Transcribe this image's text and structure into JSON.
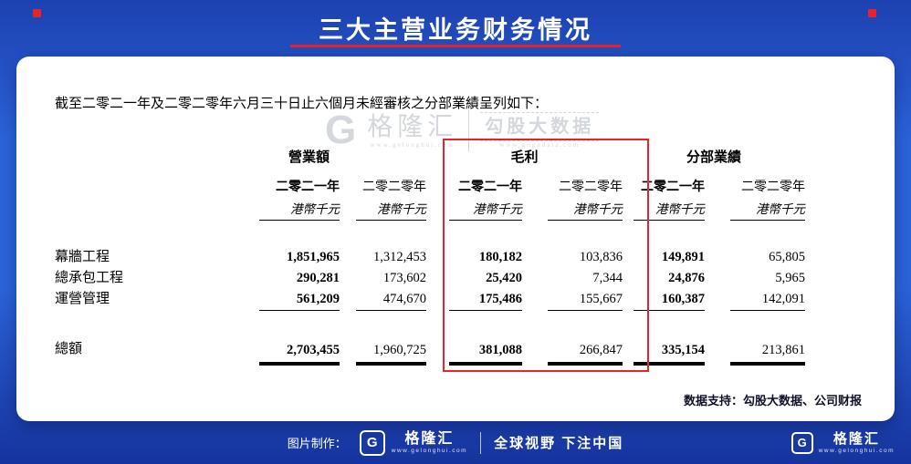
{
  "header": {
    "title": "三大主营业务财务情况"
  },
  "card": {
    "intro": "截至二零二一年及二零二零年六月三十日止六個月未經審核之分部業績呈列如下：",
    "data_support": "数据支持：勾股大数据、公司财报"
  },
  "watermark": {
    "logo_letter": "G",
    "brand": "格隆汇",
    "brand_url": "www.gelonghui.com",
    "partner": "勾股大数据",
    "partner_url": "www.gogudata.com"
  },
  "table": {
    "group_headers": [
      {
        "label": "營業額"
      },
      {
        "label": "毛利"
      },
      {
        "label": "分部業績"
      }
    ],
    "col_headers": [
      {
        "year": "二零二一年",
        "unit": "港幣千元"
      },
      {
        "year": "二零二零年",
        "unit": "港幣千元"
      },
      {
        "year": "二零二一年",
        "unit": "港幣千元"
      },
      {
        "year": "二零二零年",
        "unit": "港幣千元"
      },
      {
        "year": "二零二一年",
        "unit": "港幣千元"
      },
      {
        "year": "二零二零年",
        "unit": "港幣千元"
      }
    ],
    "rows": [
      {
        "label": "幕牆工程",
        "values": [
          "1,851,965",
          "1,312,453",
          "180,182",
          "103,836",
          "149,891",
          "65,805"
        ]
      },
      {
        "label": "總承包工程",
        "values": [
          "290,281",
          "173,602",
          "25,420",
          "7,344",
          "24,876",
          "5,965"
        ]
      },
      {
        "label": "運營管理",
        "values": [
          "561,209",
          "474,670",
          "175,486",
          "155,667",
          "160,387",
          "142,091"
        ]
      }
    ],
    "total": {
      "label": "總額",
      "values": [
        "2,703,455",
        "1,960,725",
        "381,088",
        "266,847",
        "335,154",
        "213,861"
      ]
    }
  },
  "footer": {
    "made_by": "图片制作：",
    "logo_letter": "G",
    "brand": "格隆汇",
    "brand_url": "www.gelonghui.com",
    "slogan": "全球视野 下注中国",
    "right_logo_letter": "G",
    "right_brand": "格隆汇",
    "right_brand_url": "www.gelonghui.com"
  },
  "colors": {
    "background_blue": "#2b63da",
    "accent_red": "#e8232a",
    "card_white": "#ffffff",
    "watermark_grey": "#aab0b8"
  }
}
